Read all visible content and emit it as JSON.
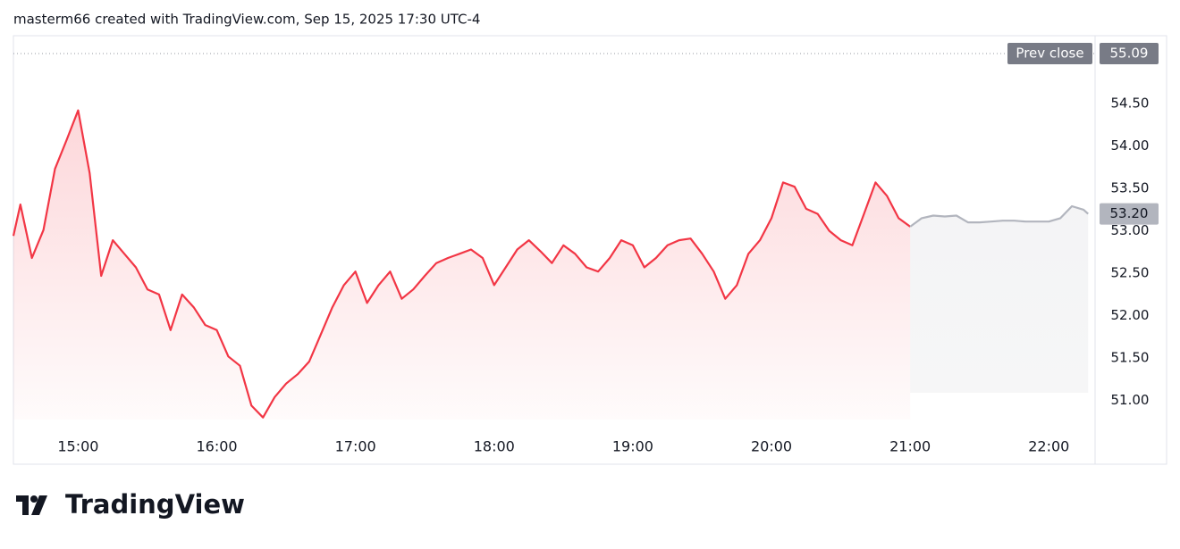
{
  "chart_data": {
    "type": "line",
    "title": "masterm66 created with TradingView.com, Sep 15, 2025 17:30 UTC-4",
    "watermark": "TradingView",
    "xlim": [
      "14:32",
      "22:20"
    ],
    "xticks": [
      "15:00",
      "16:00",
      "17:00",
      "18:00",
      "19:00",
      "20:00",
      "21:00",
      "22:00"
    ],
    "ylim": [
      50.25,
      55.3
    ],
    "yticks": [
      {
        "value": 51,
        "label": "51.00"
      },
      {
        "value": 51.5,
        "label": "51.50"
      },
      {
        "value": 52,
        "label": "52.00"
      },
      {
        "value": 52.5,
        "label": "52.50"
      },
      {
        "value": 53,
        "label": "53.00"
      },
      {
        "value": 53.5,
        "label": "53.50"
      },
      {
        "value": 54,
        "label": "54.00"
      },
      {
        "value": 54.5,
        "label": "54.50"
      }
    ],
    "series": [
      {
        "color": "#f23645",
        "fill": true,
        "x": [
          "14:32",
          "14:35",
          "14:40",
          "14:45",
          "14:50",
          "14:55",
          "15:00",
          "15:05",
          "15:10",
          "15:15",
          "15:20",
          "15:25",
          "15:30",
          "15:35",
          "15:40",
          "15:45",
          "15:50",
          "15:55",
          "16:00",
          "16:05",
          "16:10",
          "16:15",
          "16:20",
          "16:25",
          "16:30",
          "16:35",
          "16:40",
          "16:45",
          "16:50",
          "16:55",
          "17:00",
          "17:05",
          "17:10",
          "17:15",
          "17:20",
          "17:25",
          "17:30",
          "17:35",
          "17:40",
          "17:45",
          "17:50",
          "17:55",
          "18:00",
          "18:05",
          "18:10",
          "18:15",
          "18:20",
          "18:25",
          "18:30",
          "18:35",
          "18:40",
          "18:45",
          "18:50",
          "18:55",
          "19:00",
          "19:05",
          "19:10",
          "19:15",
          "19:20",
          "19:25",
          "19:30",
          "19:35",
          "19:40",
          "19:45",
          "19:50",
          "19:55",
          "20:00",
          "20:05",
          "20:10",
          "20:15",
          "20:20",
          "20:25",
          "20:30",
          "20:35",
          "20:40",
          "20:45",
          "20:50",
          "20:55",
          "21:00"
        ],
        "values": [
          52.94,
          53.31,
          52.68,
          53.01,
          53.73,
          54.07,
          54.42,
          53.68,
          52.47,
          52.89,
          52.73,
          52.57,
          52.31,
          52.25,
          51.83,
          52.25,
          52.1,
          51.89,
          51.83,
          51.52,
          51.41,
          50.94,
          50.8,
          51.04,
          51.2,
          51.31,
          51.46,
          51.78,
          52.1,
          52.36,
          52.52,
          52.15,
          52.36,
          52.52,
          52.2,
          52.31,
          52.47,
          52.62,
          52.68,
          52.73,
          52.78,
          52.68,
          52.36,
          52.57,
          52.78,
          52.89,
          52.76,
          52.62,
          52.83,
          52.73,
          52.57,
          52.52,
          52.68,
          52.89,
          52.83,
          52.57,
          52.68,
          52.83,
          52.89,
          52.91,
          52.73,
          52.52,
          52.2,
          52.36,
          52.73,
          52.89,
          53.15,
          53.57,
          53.52,
          53.26,
          53.2,
          53.0,
          52.89,
          52.83,
          53.2,
          53.57,
          53.41,
          53.15,
          53.05
        ]
      },
      {
        "color": "#b2b5be",
        "fill": true,
        "x": [
          "21:00",
          "21:05",
          "21:10",
          "21:15",
          "21:20",
          "21:25",
          "21:30",
          "21:35",
          "21:40",
          "21:45",
          "21:50",
          "21:55",
          "22:00",
          "22:05",
          "22:10",
          "22:15",
          "22:17"
        ],
        "values": [
          53.05,
          53.15,
          53.18,
          53.17,
          53.18,
          53.1,
          53.1,
          53.11,
          53.12,
          53.12,
          53.11,
          53.11,
          53.11,
          53.15,
          53.29,
          53.25,
          53.2
        ]
      }
    ],
    "prev_close": {
      "label": "Prev close",
      "value": 55.09
    },
    "last_price": {
      "value": 53.2,
      "label": "53.20"
    }
  }
}
